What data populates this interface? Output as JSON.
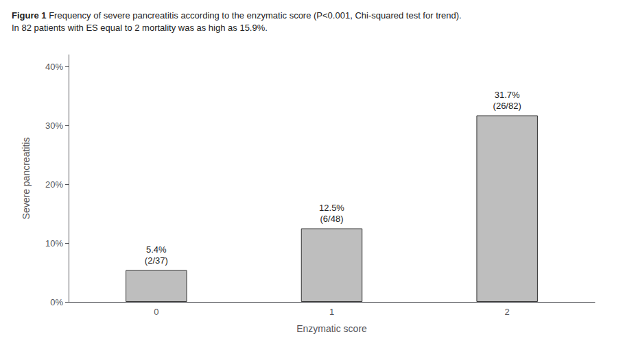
{
  "chart_data": {
    "type": "bar",
    "title": "Figure 1",
    "subtitle": "Frequency of severe pancreatitis according to the enzymatic score (P<0.001, Chi-squared test for trend).\nIn 82 patients with ES equal to 2 mortality was as high as 15.9%.",
    "categories": [
      0,
      1,
      2
    ],
    "values": [
      5.4,
      12.5,
      31.7
    ],
    "value_labels": [
      "5.4%\n(2/37)",
      "12.5%\n(6/48)",
      "31.7%\n(26/82)"
    ],
    "data_labels": true,
    "color": "#bebebe",
    "xlabel": "Enzymatic score",
    "ylabel": "Severe pancreatitis",
    "ylim": [
      0,
      42
    ],
    "yticks": [
      {
        "value": 0,
        "label": "0%"
      },
      {
        "value": 10,
        "label": "10%"
      },
      {
        "value": 20,
        "label": "20%"
      },
      {
        "value": 30,
        "label": "30%"
      },
      {
        "value": 40,
        "label": "40%"
      }
    ],
    "grid": false
  }
}
